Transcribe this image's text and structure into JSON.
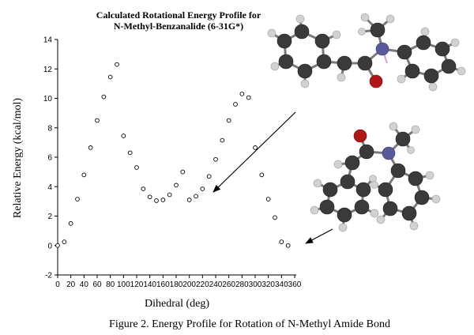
{
  "chart_data": {
    "type": "scatter",
    "title": [
      "Calculated Rotational Energy Profile for",
      "N-Methyl-Benzanalide (6-31G*)"
    ],
    "xlabel": "Dihedral (deg)",
    "ylabel": "Relative Energy (kcal/mol)",
    "xlim": [
      0,
      360
    ],
    "ylim": [
      -2,
      14
    ],
    "xticks": [
      "0",
      "20",
      "40",
      "60",
      "80",
      "100",
      "120",
      "140",
      "160",
      "180",
      "200",
      "220",
      "240",
      "260",
      "280",
      "300",
      "320",
      "340",
      "360"
    ],
    "yticks": [
      "-2",
      "0",
      "2",
      "4",
      "6",
      "8",
      "10",
      "12",
      "14"
    ],
    "grid": false,
    "legend": "none",
    "marker": "open-circle",
    "points": {
      "x": [
        0,
        10,
        20,
        30,
        40,
        50,
        60,
        70,
        80,
        90,
        100,
        110,
        120,
        130,
        140,
        150,
        160,
        170,
        180,
        190,
        200,
        210,
        220,
        230,
        240,
        250,
        260,
        270,
        280,
        290,
        300,
        310,
        320,
        330,
        340,
        350,
        360
      ],
      "y": [
        0.0,
        0.25,
        1.5,
        3.15,
        4.8,
        6.65,
        8.5,
        10.1,
        11.45,
        12.3,
        7.45,
        6.3,
        5.3,
        3.85,
        3.3,
        3.05,
        3.1,
        3.45,
        4.1,
        5.0,
        3.1,
        3.35,
        3.85,
        4.7,
        5.85,
        7.15,
        8.5,
        9.6,
        10.3,
        10.05,
        6.65,
        4.8,
        3.15,
        1.9,
        0.25,
        0.0,
        null
      ]
    }
  },
  "figure": {
    "caption": "Figure 2.  Energy Profile for Rotation of N-Methyl Amide Bond",
    "molecules": [
      "molecule-upper-conformer",
      "molecule-lower-conformer"
    ],
    "colors": {
      "carbon": "#3a3a3a",
      "hydrogen": "#d4d4d4",
      "oxygen": "#b01818",
      "nitrogen": "#5a5a9a",
      "bond": "#7a7a7a"
    }
  }
}
